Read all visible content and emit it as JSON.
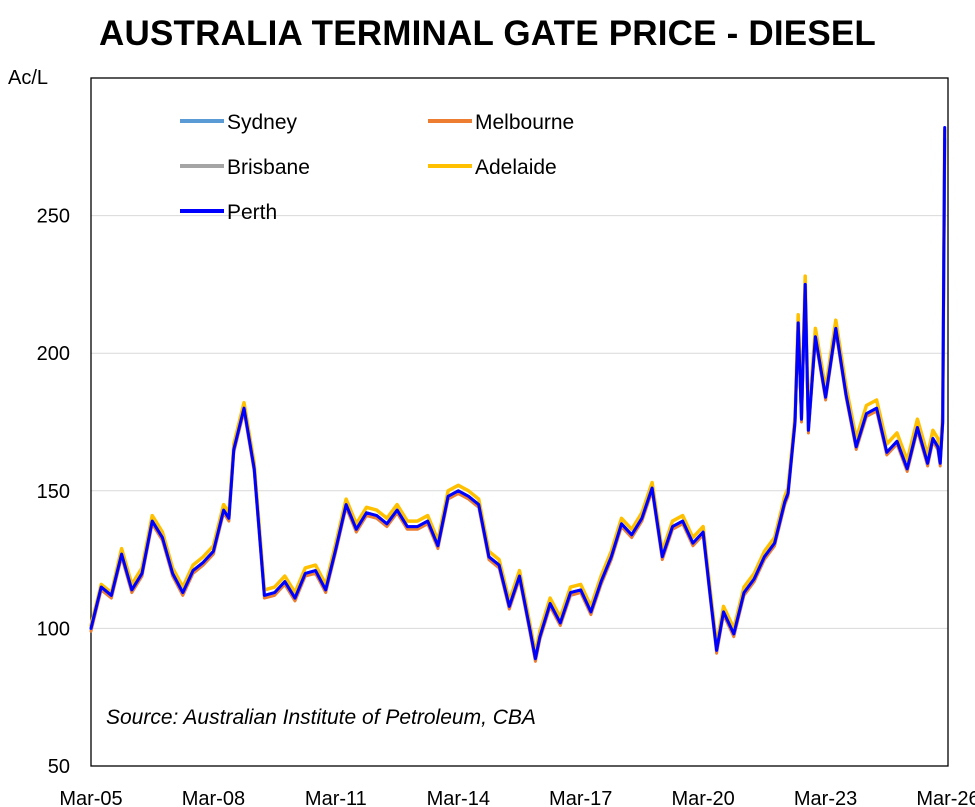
{
  "chart_data": {
    "type": "line",
    "title": "AUSTRALIA TERMINAL GATE PRICE - DIESEL",
    "ylabel": "Ac/L",
    "ylim": [
      50,
      300
    ],
    "yticks": [
      50,
      100,
      150,
      200,
      250
    ],
    "xlim": [
      2005.17,
      2026.17
    ],
    "xticks": [
      {
        "label": "Mar-05",
        "value": 2005.17
      },
      {
        "label": "Mar-08",
        "value": 2008.17
      },
      {
        "label": "Mar-11",
        "value": 2011.17
      },
      {
        "label": "Mar-14",
        "value": 2014.17
      },
      {
        "label": "Mar-17",
        "value": 2017.17
      },
      {
        "label": "Mar-20",
        "value": 2020.17
      },
      {
        "label": "Mar-23",
        "value": 2023.17
      },
      {
        "label": "Mar-26",
        "value": 2026.17
      }
    ],
    "grid": "horizontal",
    "legend_position": "top-left",
    "annotation": "Source: Australian Institute of Petroleum, CBA",
    "colors": {
      "Sydney": "#5b9bd5",
      "Melbourne": "#ed7d31",
      "Brisbane": "#a5a5a5",
      "Adelaide": "#ffc000",
      "Perth": "#0000ff"
    },
    "x": [
      2005.17,
      2005.42,
      2005.67,
      2005.92,
      2006.17,
      2006.42,
      2006.67,
      2006.92,
      2007.17,
      2007.42,
      2007.67,
      2007.92,
      2008.17,
      2008.42,
      2008.55,
      2008.67,
      2008.92,
      2009.17,
      2009.42,
      2009.67,
      2009.92,
      2010.17,
      2010.42,
      2010.67,
      2010.92,
      2011.17,
      2011.42,
      2011.67,
      2011.92,
      2012.17,
      2012.42,
      2012.67,
      2012.92,
      2013.17,
      2013.42,
      2013.67,
      2013.92,
      2014.17,
      2014.42,
      2014.67,
      2014.92,
      2015.17,
      2015.42,
      2015.67,
      2015.92,
      2016.06,
      2016.17,
      2016.42,
      2016.67,
      2016.92,
      2017.17,
      2017.42,
      2017.67,
      2017.92,
      2018.17,
      2018.42,
      2018.67,
      2018.92,
      2019.17,
      2019.42,
      2019.67,
      2019.92,
      2020.17,
      2020.35,
      2020.5,
      2020.67,
      2020.92,
      2021.17,
      2021.42,
      2021.67,
      2021.92,
      2022.17,
      2022.25,
      2022.42,
      2022.5,
      2022.58,
      2022.67,
      2022.75,
      2022.92,
      2023.17,
      2023.42,
      2023.67,
      2023.92,
      2024.17,
      2024.42,
      2024.67,
      2024.92,
      2025.17,
      2025.42,
      2025.67,
      2025.8,
      2025.92,
      2025.98,
      2026.04,
      2026.09
    ],
    "series": [
      {
        "name": "Sydney",
        "values": [
          100,
          115,
          112,
          127,
          114,
          120,
          139,
          133,
          120,
          113,
          121,
          124,
          128,
          143,
          140,
          165,
          180,
          158,
          112,
          113,
          117,
          111,
          120,
          121,
          114,
          129,
          145,
          136,
          142,
          141,
          138,
          143,
          137,
          137,
          139,
          130,
          148,
          150,
          148,
          145,
          126,
          123,
          108,
          119,
          100,
          89,
          97,
          109,
          102,
          113,
          114,
          106,
          117,
          126,
          138,
          134,
          140,
          151,
          126,
          137,
          139,
          131,
          135,
          111,
          92,
          106,
          98,
          113,
          118,
          126,
          131,
          146,
          149,
          175,
          211,
          176,
          225,
          172,
          206,
          184,
          209,
          185,
          166,
          178,
          180,
          164,
          168,
          158,
          173,
          160,
          169,
          166,
          160,
          175,
          278
        ]
      },
      {
        "name": "Melbourne",
        "values": [
          99,
          114,
          111,
          126,
          113,
          119,
          138,
          132,
          119,
          112,
          120,
          123,
          127,
          142,
          139,
          164,
          179,
          157,
          111,
          112,
          116,
          110,
          119,
          120,
          113,
          128,
          144,
          135,
          141,
          140,
          137,
          142,
          136,
          136,
          138,
          129,
          147,
          149,
          147,
          144,
          125,
          122,
          107,
          118,
          99,
          88,
          96,
          108,
          101,
          112,
          113,
          105,
          116,
          125,
          137,
          133,
          139,
          150,
          125,
          136,
          138,
          130,
          134,
          110,
          91,
          105,
          97,
          112,
          117,
          125,
          130,
          145,
          148,
          174,
          210,
          175,
          224,
          171,
          205,
          183,
          208,
          184,
          165,
          177,
          179,
          163,
          167,
          157,
          172,
          159,
          168,
          165,
          159,
          174,
          277
        ]
      },
      {
        "name": "Brisbane",
        "values": [
          100,
          115,
          112,
          127,
          114,
          120,
          139,
          133,
          120,
          113,
          121,
          124,
          128,
          143,
          140,
          165,
          180,
          158,
          112,
          113,
          117,
          111,
          120,
          121,
          114,
          129,
          145,
          136,
          142,
          141,
          138,
          143,
          137,
          137,
          139,
          130,
          148,
          150,
          148,
          145,
          126,
          123,
          108,
          119,
          100,
          89,
          97,
          109,
          102,
          113,
          114,
          106,
          117,
          126,
          138,
          134,
          140,
          151,
          126,
          137,
          139,
          131,
          135,
          111,
          92,
          106,
          98,
          113,
          118,
          126,
          131,
          146,
          149,
          175,
          211,
          176,
          225,
          172,
          206,
          184,
          209,
          185,
          166,
          178,
          180,
          164,
          168,
          158,
          173,
          160,
          169,
          166,
          160,
          175,
          278
        ]
      },
      {
        "name": "Adelaide",
        "values": [
          101,
          116,
          113,
          129,
          116,
          122,
          141,
          135,
          122,
          115,
          123,
          126,
          130,
          145,
          142,
          167,
          182,
          160,
          114,
          115,
          119,
          113,
          122,
          123,
          116,
          131,
          147,
          138,
          144,
          143,
          140,
          145,
          139,
          139,
          141,
          132,
          150,
          152,
          150,
          147,
          128,
          125,
          110,
          121,
          102,
          91,
          99,
          111,
          104,
          115,
          116,
          108,
          119,
          128,
          140,
          136,
          142,
          153,
          128,
          139,
          141,
          133,
          137,
          113,
          94,
          108,
          100,
          115,
          120,
          128,
          133,
          148,
          151,
          177,
          214,
          179,
          228,
          175,
          209,
          187,
          212,
          188,
          169,
          181,
          183,
          167,
          171,
          161,
          176,
          163,
          172,
          169,
          163,
          178,
          281
        ]
      },
      {
        "name": "Perth",
        "values": [
          100,
          115,
          112,
          127,
          114,
          120,
          139,
          133,
          120,
          113,
          121,
          124,
          128,
          143,
          140,
          165,
          180,
          158,
          112,
          113,
          117,
          111,
          120,
          121,
          114,
          129,
          145,
          136,
          142,
          141,
          138,
          143,
          137,
          137,
          139,
          130,
          148,
          150,
          148,
          145,
          126,
          123,
          108,
          119,
          100,
          89,
          97,
          109,
          102,
          113,
          114,
          106,
          117,
          126,
          138,
          134,
          140,
          151,
          126,
          137,
          139,
          131,
          135,
          111,
          92,
          106,
          98,
          113,
          118,
          126,
          131,
          146,
          149,
          175,
          211,
          176,
          225,
          172,
          206,
          184,
          209,
          185,
          166,
          178,
          180,
          164,
          168,
          158,
          173,
          160,
          169,
          166,
          160,
          175,
          282
        ]
      }
    ]
  }
}
